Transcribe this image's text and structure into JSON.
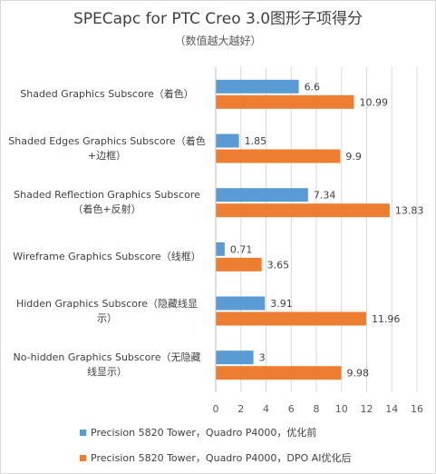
{
  "chart_data": {
    "type": "bar",
    "orientation": "horizontal",
    "title": "SPECapc for PTC Creo 3.0图形子项得分",
    "subtitle": "（数值越大越好）",
    "categories": [
      [
        "Shaded Graphics Subscore（着色）"
      ],
      [
        "Shaded Edges  Graphics Subscore（着色",
        "+边框）"
      ],
      [
        "Shaded Reflection Graphics Subscore",
        "（着色+反射）"
      ],
      [
        "Wireframe Graphics Subscore（线框）"
      ],
      [
        "Hidden Graphics Subscore（隐藏线显",
        "示）"
      ],
      [
        "No-hidden Graphics Subscore（无隐藏",
        "线显示）"
      ]
    ],
    "series": [
      {
        "name": "Precision 5820 Tower，Quadro P4000，优化前",
        "color": "#5b9bd5",
        "values": [
          6.6,
          1.85,
          7.34,
          0.71,
          3.91,
          3
        ]
      },
      {
        "name": "Precision 5820 Tower，Quadro P4000，DPO AI优化后",
        "color": "#ed7d31",
        "values": [
          10.99,
          9.9,
          13.83,
          3.65,
          11.96,
          9.98
        ]
      }
    ],
    "data_labels": [
      [
        "6.6",
        "1.85",
        "7.34",
        "0.71",
        "3.91",
        "3"
      ],
      [
        "10.99",
        "9.9",
        "13.83",
        "3.65",
        "11.96",
        "9.98"
      ]
    ],
    "xlim": [
      0,
      16
    ],
    "xticks": [
      "0",
      "2",
      "4",
      "6",
      "8",
      "10",
      "12",
      "14",
      "16"
    ],
    "grid": true,
    "legend_position": "bottom"
  }
}
